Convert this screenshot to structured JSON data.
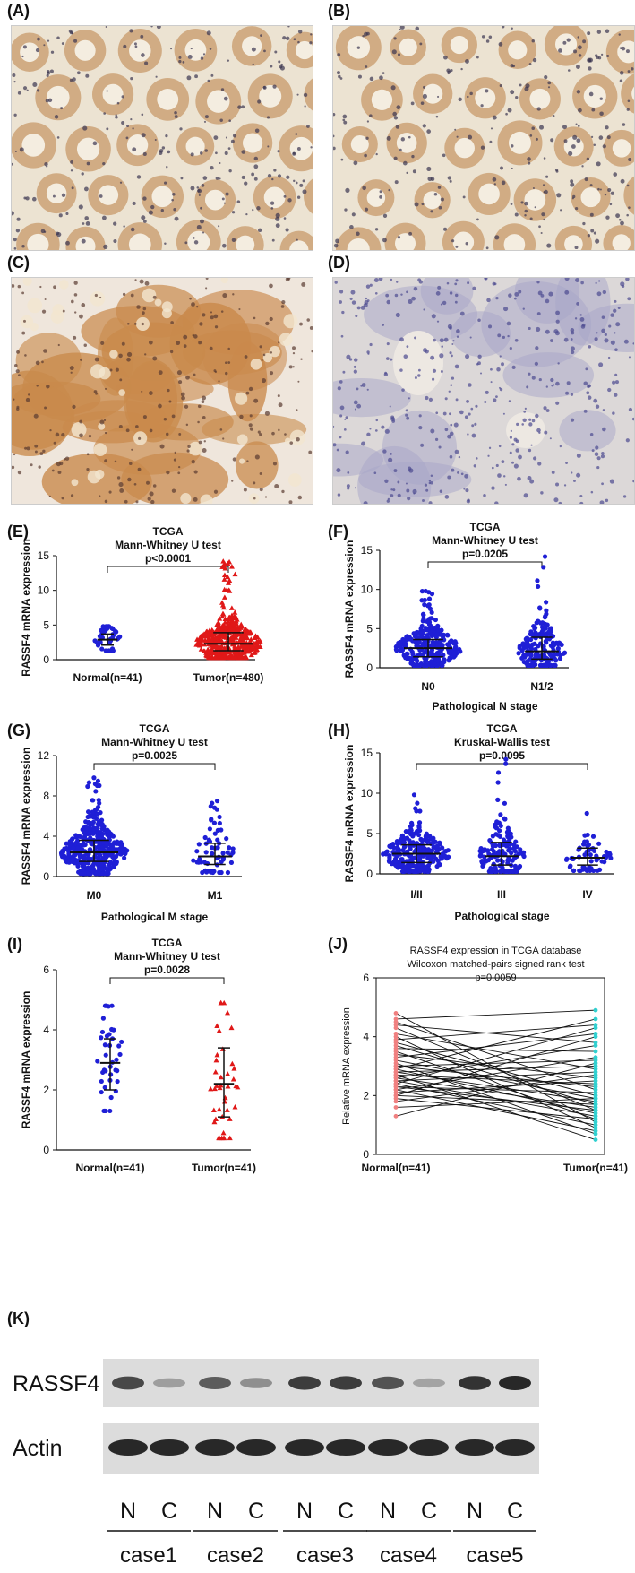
{
  "panels": {
    "A": "(A)",
    "B": "(B)",
    "C": "(C)",
    "D": "(D)",
    "E": "(E)",
    "F": "(F)",
    "G": "(G)",
    "H": "(H)",
    "I": "(I)",
    "J": "(J)",
    "K": "(K)"
  },
  "micrographs": [
    {
      "panel": "A",
      "stain": "weak"
    },
    {
      "panel": "B",
      "stain": "weak"
    },
    {
      "panel": "C",
      "stain": "strong"
    },
    {
      "panel": "D",
      "stain": "negative"
    }
  ],
  "colors": {
    "normal": "#1f1fd6",
    "tumor": "#e01818",
    "pair_normal": "#f08080",
    "pair_tumor": "#30d0d0",
    "black": "#111111"
  },
  "chart_data": [
    {
      "panel": "E",
      "type": "scatter",
      "title_lines": [
        "TCGA",
        "Mann-Whitney  U test"
      ],
      "pvalue": "p<0.0001",
      "ylabel": "RASSF4 mRNA expression",
      "xlabel": "",
      "ylim": [
        0,
        15
      ],
      "yticks": [
        "0",
        "5",
        "10",
        "15"
      ],
      "categories": [
        "Normal(n=41)",
        "Tumor(n=480)"
      ],
      "series": [
        {
          "n": 41,
          "median": 2.9,
          "lower": 2.1,
          "upper": 3.7,
          "min": 1.3,
          "max": 4.8,
          "color": "normal",
          "marker": "circle"
        },
        {
          "n": 480,
          "median": 2.3,
          "lower": 1.3,
          "upper": 3.9,
          "min": 0.3,
          "max": 14.2,
          "color": "tumor",
          "marker": "triangle"
        }
      ]
    },
    {
      "panel": "F",
      "type": "scatter",
      "title_lines": [
        "TCGA",
        "Mann-Whitney U test"
      ],
      "pvalue": "p=0.0205",
      "ylabel": "RASSF4 mRNA expression",
      "xlabel": "Pathological N stage",
      "ylim": [
        0,
        15
      ],
      "yticks": [
        "0",
        "5",
        "10",
        "15"
      ],
      "categories": [
        "N0",
        "N1/2"
      ],
      "series": [
        {
          "n": 290,
          "median": 2.5,
          "lower": 1.4,
          "upper": 3.6,
          "min": 0.3,
          "max": 9.8,
          "color": "normal",
          "marker": "circle"
        },
        {
          "n": 190,
          "median": 2.1,
          "lower": 1.1,
          "upper": 3.9,
          "min": 0.3,
          "max": 14.2,
          "color": "normal",
          "marker": "circle"
        }
      ]
    },
    {
      "panel": "G",
      "type": "scatter",
      "title_lines": [
        "TCGA",
        "Mann-Whitney U test"
      ],
      "pvalue": "p=0.0025",
      "ylabel": "RASSF4 mRNA expression",
      "xlabel": "Pathological M stage",
      "ylim": [
        0,
        12
      ],
      "yticks": [
        "0",
        "4",
        "8",
        "12"
      ],
      "categories": [
        "M0",
        "M1"
      ],
      "series": [
        {
          "n": 420,
          "median": 2.4,
          "lower": 1.5,
          "upper": 3.6,
          "min": 0.3,
          "max": 9.8,
          "color": "normal",
          "marker": "circle"
        },
        {
          "n": 60,
          "median": 2.0,
          "lower": 1.2,
          "upper": 3.3,
          "min": 0.4,
          "max": 7.5,
          "color": "normal",
          "marker": "circle"
        }
      ]
    },
    {
      "panel": "H",
      "type": "scatter",
      "title_lines": [
        "TCGA",
        "Kruskal-Wallis test"
      ],
      "pvalue": "p=0.0095",
      "ylabel": "RASSF4 mRNA expression",
      "xlabel": "Pathological stage",
      "ylim": [
        0,
        15
      ],
      "yticks": [
        "0",
        "5",
        "10",
        "15"
      ],
      "categories": [
        "I/II",
        "III",
        "IV"
      ],
      "series": [
        {
          "n": 260,
          "median": 2.5,
          "lower": 1.4,
          "upper": 3.6,
          "min": 0.3,
          "max": 9.8,
          "color": "normal",
          "marker": "circle"
        },
        {
          "n": 150,
          "median": 2.2,
          "lower": 1.1,
          "upper": 3.9,
          "min": 0.3,
          "max": 14.2,
          "color": "normal",
          "marker": "circle"
        },
        {
          "n": 60,
          "median": 2.0,
          "lower": 1.1,
          "upper": 3.2,
          "min": 0.4,
          "max": 7.5,
          "color": "normal",
          "marker": "circle"
        }
      ]
    },
    {
      "panel": "I",
      "type": "scatter",
      "title_lines": [
        "TCGA",
        "Mann-Whitney  U test"
      ],
      "pvalue": "p=0.0028",
      "ylabel": "RASSF4 mRNA expression",
      "xlabel": "",
      "ylim": [
        0,
        6
      ],
      "yticks": [
        "0",
        "2",
        "4",
        "6"
      ],
      "categories": [
        "Normal(n=41)",
        "Tumor(n=41)"
      ],
      "series": [
        {
          "n": 41,
          "median": 2.9,
          "lower": 2.0,
          "upper": 3.7,
          "min": 1.3,
          "max": 4.8,
          "color": "normal",
          "marker": "circle"
        },
        {
          "n": 41,
          "median": 2.2,
          "lower": 1.1,
          "upper": 3.4,
          "min": 0.4,
          "max": 4.9,
          "color": "tumor",
          "marker": "triangle"
        }
      ]
    },
    {
      "panel": "J",
      "type": "line",
      "title_lines": [
        "RASSF4 expression in TCGA database",
        "Wilcoxon matched-pairs signed rank test"
      ],
      "pvalue": "p=0.0059",
      "ylabel": "Relative mRNA expression",
      "xlabel": "",
      "ylim": [
        0,
        6
      ],
      "yticks": [
        "0",
        "2",
        "4",
        "6"
      ],
      "categories": [
        "Normal(n=41)",
        "Tumor(n=41)"
      ],
      "pairs": [
        [
          4.8,
          1.1
        ],
        [
          4.6,
          4.9
        ],
        [
          4.5,
          2.2
        ],
        [
          4.4,
          3.8
        ],
        [
          4.3,
          1.5
        ],
        [
          4.1,
          2.9
        ],
        [
          4.0,
          0.9
        ],
        [
          3.9,
          4.4
        ],
        [
          3.8,
          2.0
        ],
        [
          3.7,
          1.7
        ],
        [
          3.6,
          3.5
        ],
        [
          3.5,
          1.2
        ],
        [
          3.4,
          2.6
        ],
        [
          3.3,
          4.1
        ],
        [
          3.2,
          1.9
        ],
        [
          3.1,
          0.7
        ],
        [
          3.0,
          3.2
        ],
        [
          3.0,
          2.3
        ],
        [
          2.9,
          1.4
        ],
        [
          2.9,
          4.6
        ],
        [
          2.8,
          1.8
        ],
        [
          2.8,
          3.0
        ],
        [
          2.7,
          0.5
        ],
        [
          2.7,
          2.4
        ],
        [
          2.6,
          1.6
        ],
        [
          2.6,
          3.7
        ],
        [
          2.5,
          1.3
        ],
        [
          2.5,
          2.8
        ],
        [
          2.4,
          1.0
        ],
        [
          2.4,
          4.3
        ],
        [
          2.3,
          2.1
        ],
        [
          2.3,
          1.5
        ],
        [
          2.2,
          3.3
        ],
        [
          2.2,
          0.8
        ],
        [
          2.1,
          2.5
        ],
        [
          2.0,
          1.7
        ],
        [
          2.0,
          4.0
        ],
        [
          1.9,
          1.2
        ],
        [
          1.8,
          2.7
        ],
        [
          1.6,
          1.9
        ],
        [
          1.3,
          3.1
        ]
      ]
    }
  ],
  "western_blot": {
    "rows": [
      {
        "label": "RASSF4",
        "intensities": [
          0.85,
          0.35,
          0.75,
          0.45,
          0.9,
          0.9,
          0.8,
          0.3,
          0.95,
          1.0
        ]
      },
      {
        "label": "Actin",
        "intensities": [
          1,
          1,
          1,
          1,
          1,
          1,
          1,
          1,
          1,
          1
        ]
      }
    ],
    "lanes": [
      "N",
      "C",
      "N",
      "C",
      "N",
      "C",
      "N",
      "C",
      "N",
      "C"
    ],
    "cases": [
      "case1",
      "case2",
      "case3",
      "case4",
      "case5"
    ]
  }
}
